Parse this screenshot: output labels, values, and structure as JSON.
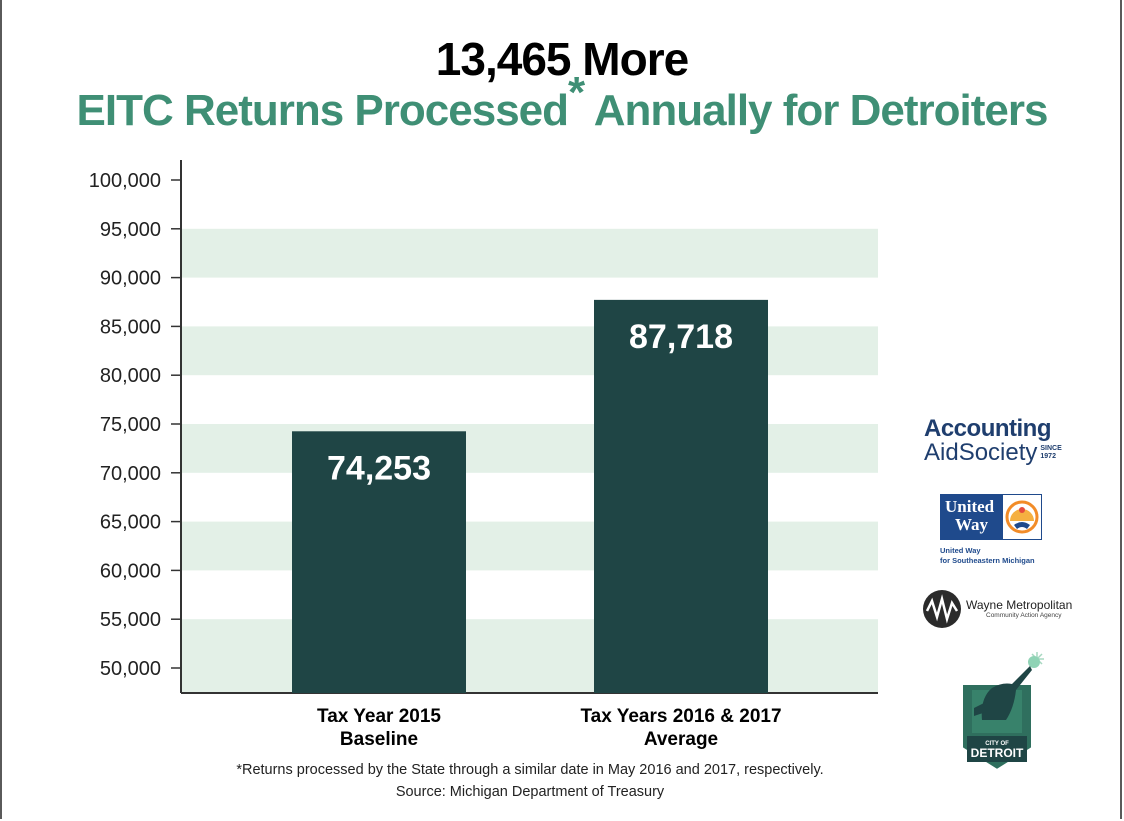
{
  "title": {
    "line1": "13,465 More",
    "line2": "EITC Returns Processed",
    "asterisk": "*",
    "line2_end": " Annually for Detroiters"
  },
  "chart_data": {
    "type": "bar",
    "title": "13,465 More EITC Returns Processed* Annually for Detroiters",
    "categories": [
      [
        "Tax Year 2015",
        "Baseline"
      ],
      [
        "Tax Years 2016 & 2017",
        "Average"
      ]
    ],
    "values": [
      74253,
      87718
    ],
    "value_labels": [
      "74,253",
      "87,718"
    ],
    "ylim": [
      47500,
      102000
    ],
    "yticks": [
      50000,
      55000,
      60000,
      65000,
      70000,
      75000,
      80000,
      85000,
      90000,
      95000,
      100000
    ],
    "ytick_labels": [
      "50,000",
      "55,000",
      "60,000",
      "65,000",
      "70,000",
      "75,000",
      "80,000",
      "85,000",
      "90,000",
      "95,000",
      "100,000"
    ],
    "xlabel": "",
    "ylabel": "",
    "grid": "alternating horizontal bands",
    "colors": {
      "bar": "#1f4545",
      "band": "#e3f0e7",
      "title_accent": "#3f8f75"
    }
  },
  "footnote": {
    "line1": "*Returns processed by the State through a similar date in May 2016 and 2017, respectively.",
    "line2": "Source: Michigan Department of Treasury"
  },
  "logos": {
    "accounting_aid": {
      "line1": "Accounting",
      "line2": "AidSociety",
      "since_label": "SINCE",
      "since_year": "1972"
    },
    "united_way": {
      "word1": "United",
      "word2": "Way",
      "sub1": "United Way",
      "sub2": "for Southeastern Michigan"
    },
    "wayne_metro": {
      "name": "Wayne Metropolitan",
      "sub": "Community Action Agency"
    },
    "city_of_detroit": {
      "line1": "CITY OF",
      "line2": "DETROIT"
    }
  }
}
